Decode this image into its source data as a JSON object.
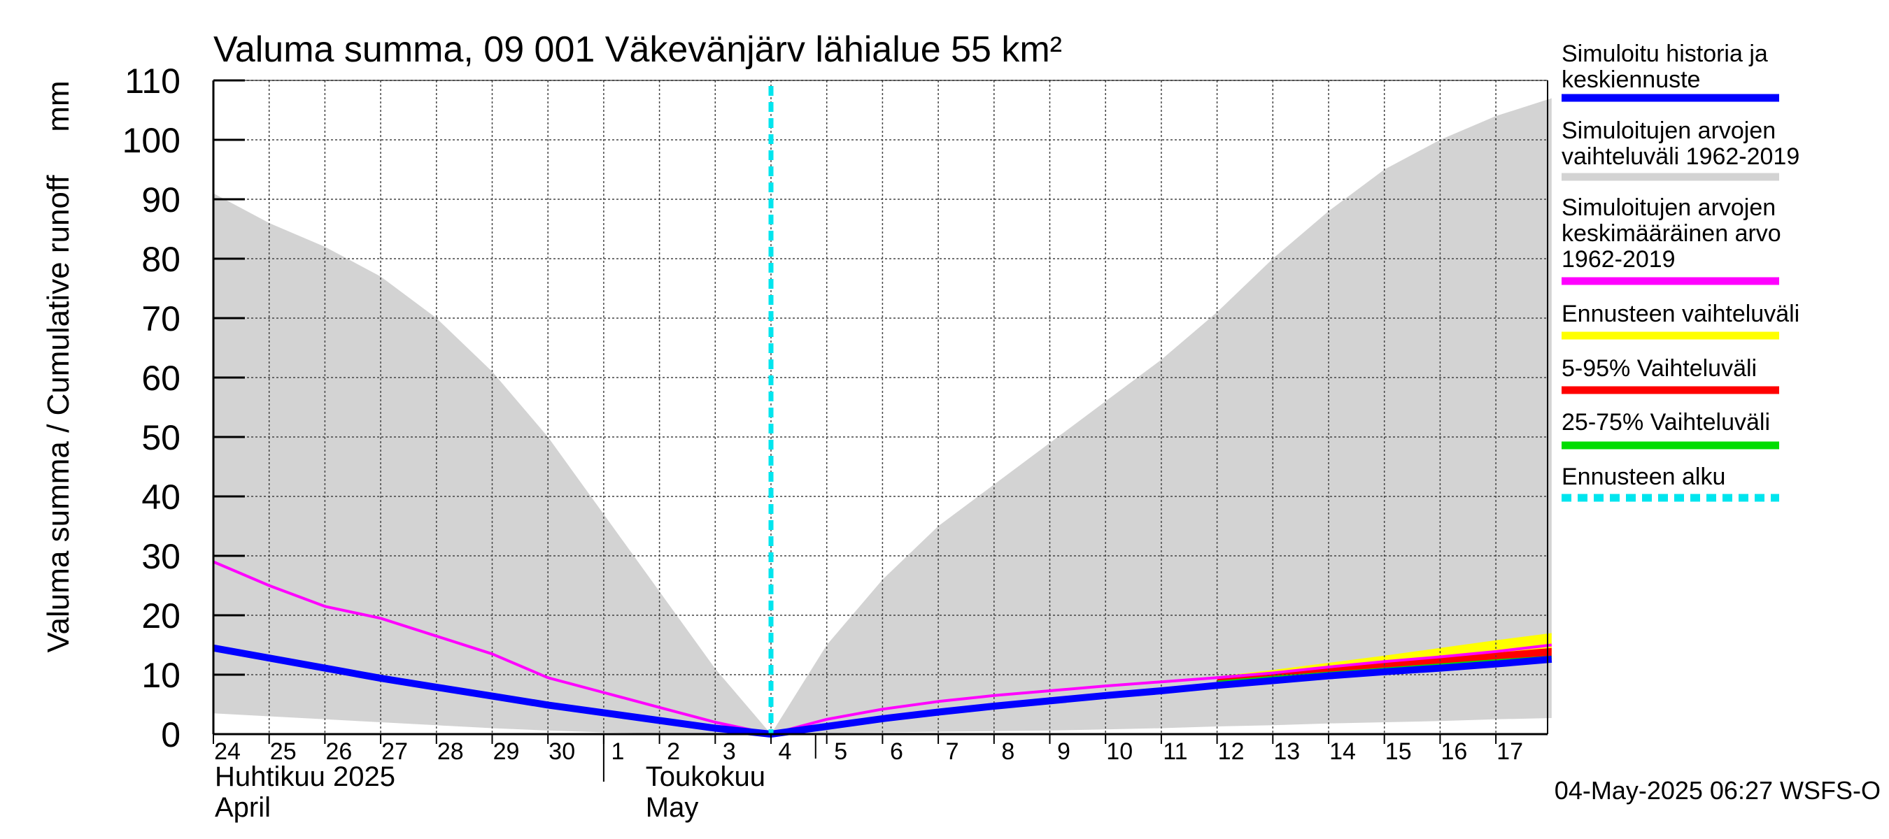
{
  "chart_data": {
    "type": "area",
    "title": "Valuma summa, 09 001 Väkevänjärv lähialue 55 km²",
    "ylabel": "Valuma summa / Cumulative runoff",
    "yunit": "mm",
    "ylim": [
      0,
      110
    ],
    "yticks": [
      0,
      10,
      20,
      30,
      40,
      50,
      60,
      70,
      80,
      90,
      100,
      110
    ],
    "x_day_labels": [
      "24",
      "25",
      "26",
      "27",
      "28",
      "29",
      "30",
      "1",
      "2",
      "3",
      "4",
      "5",
      "6",
      "7",
      "8",
      "9",
      "10",
      "11",
      "12",
      "13",
      "14",
      "15",
      "16",
      "17"
    ],
    "month_labels": [
      {
        "fi": "Huhtikuu  2025",
        "en": "April"
      },
      {
        "fi": "Toukokuu",
        "en": "May"
      }
    ],
    "grid": true,
    "forecast_start": "2025-05-04",
    "footer": "04-May-2025 06:27 WSFS-O",
    "series": [
      {
        "key": "range_hist",
        "name": "Simuloitujen arvojen vaihteluväli 1962-2019",
        "color": "#d3d3d3",
        "x": [
          "2025-04-24",
          "2025-04-25",
          "2025-04-26",
          "2025-04-27",
          "2025-04-28",
          "2025-04-29",
          "2025-04-30",
          "2025-05-01",
          "2025-05-02",
          "2025-05-03",
          "2025-05-04",
          "2025-05-05",
          "2025-05-06",
          "2025-05-07",
          "2025-05-08",
          "2025-05-09",
          "2025-05-10",
          "2025-05-11",
          "2025-05-12",
          "2025-05-13",
          "2025-05-14",
          "2025-05-15",
          "2025-05-16",
          "2025-05-17",
          "2025-05-18"
        ],
        "upper": [
          91,
          86,
          82,
          77,
          70,
          61,
          50,
          37,
          24,
          11,
          0,
          15,
          26,
          35,
          42,
          49,
          56,
          63,
          71,
          80,
          88,
          95,
          100,
          104,
          107
        ],
        "lower": [
          3.5,
          3,
          2.5,
          2,
          1.5,
          1,
          0.6,
          0.3,
          0.1,
          0,
          0,
          0.2,
          0.3,
          0.4,
          0.5,
          0.6,
          0.8,
          1.0,
          1.3,
          1.5,
          1.8,
          2.0,
          2.2,
          2.5,
          2.7
        ]
      },
      {
        "key": "forecast_range",
        "name": "Ennusteen vaihteluväli",
        "color": "#ffff00",
        "x": [
          "2025-05-12",
          "2025-05-13",
          "2025-05-14",
          "2025-05-15",
          "2025-05-16",
          "2025-05-17",
          "2025-05-18"
        ],
        "upper": [
          9.7,
          10.8,
          12,
          13.2,
          14.5,
          15.8,
          17
        ],
        "lower": [
          8.8,
          9.5,
          10.3,
          11,
          11.6,
          12.3,
          13
        ]
      },
      {
        "key": "p5_95",
        "name": "5-95% Vaihteluväli",
        "color": "#ff0000",
        "x": [
          "2025-05-12",
          "2025-05-13",
          "2025-05-14",
          "2025-05-15",
          "2025-05-16",
          "2025-05-17",
          "2025-05-18"
        ],
        "upper": [
          9.3,
          10.2,
          11.1,
          12,
          12.9,
          13.7,
          14.5
        ],
        "lower": [
          8.7,
          9.4,
          10.1,
          10.8,
          11.4,
          12.0,
          12.5
        ]
      },
      {
        "key": "p25_75",
        "name": "25-75% Vaihteluväli",
        "color": "#00dd00",
        "x": [
          "2025-05-12",
          "2025-05-13",
          "2025-05-14",
          "2025-05-15",
          "2025-05-16",
          "2025-05-17",
          "2025-05-18"
        ],
        "upper": [
          9.0,
          9.8,
          10.5,
          11.2,
          11.9,
          12.6,
          13.2
        ],
        "lower": [
          8.7,
          9.4,
          10.1,
          10.8,
          11.4,
          12.0,
          12.6
        ]
      },
      {
        "key": "mean_hist",
        "name": "Simuloitujen arvojen keskimääräinen arvo 1962-2019",
        "color": "#ff00ff",
        "x": [
          "2025-04-24",
          "2025-04-25",
          "2025-04-26",
          "2025-04-27",
          "2025-04-28",
          "2025-04-29",
          "2025-04-30",
          "2025-05-01",
          "2025-05-02",
          "2025-05-03",
          "2025-05-04",
          "2025-05-05",
          "2025-05-06",
          "2025-05-07",
          "2025-05-08",
          "2025-05-09",
          "2025-05-10",
          "2025-05-11",
          "2025-05-12",
          "2025-05-13",
          "2025-05-14",
          "2025-05-15",
          "2025-05-16",
          "2025-05-17",
          "2025-05-18"
        ],
        "values": [
          29,
          25,
          21.5,
          19.5,
          16.5,
          13.5,
          9.5,
          7,
          4.5,
          2,
          0,
          2.5,
          4.2,
          5.5,
          6.5,
          7.3,
          8.1,
          8.8,
          9.5,
          10.3,
          11.3,
          12.2,
          13,
          13.9,
          15
        ]
      },
      {
        "key": "history",
        "name": "Simuloitu historia ja keskiennuste",
        "color": "#0000ff",
        "x": [
          "2025-04-24",
          "2025-04-25",
          "2025-04-26",
          "2025-04-27",
          "2025-04-28",
          "2025-04-29",
          "2025-04-30",
          "2025-05-01",
          "2025-05-02",
          "2025-05-03",
          "2025-05-04",
          "2025-05-05",
          "2025-05-06",
          "2025-05-07",
          "2025-05-08",
          "2025-05-09",
          "2025-05-10",
          "2025-05-11",
          "2025-05-12",
          "2025-05-13",
          "2025-05-14",
          "2025-05-15",
          "2025-05-16",
          "2025-05-17",
          "2025-05-18"
        ],
        "values": [
          14.5,
          12.8,
          11.1,
          9.4,
          7.9,
          6.4,
          4.9,
          3.6,
          2.3,
          1.0,
          0,
          1.3,
          2.6,
          3.7,
          4.7,
          5.6,
          6.5,
          7.3,
          8.2,
          9.0,
          9.8,
          10.5,
          11.1,
          11.8,
          12.6
        ]
      }
    ]
  },
  "legend": {
    "items": [
      {
        "lines": [
          "Simuloitu historia ja",
          "keskiennuste"
        ],
        "color": "#0000ff",
        "style": "solid"
      },
      {
        "lines": [
          "Simuloitujen arvojen",
          "vaihteluväli 1962-2019"
        ],
        "color": "#d3d3d3",
        "style": "solid"
      },
      {
        "lines": [
          "Simuloitujen arvojen",
          "keskimääräinen arvo",
          "   1962-2019"
        ],
        "color": "#ff00ff",
        "style": "solid"
      },
      {
        "lines": [
          "Ennusteen vaihteluväli"
        ],
        "color": "#ffff00",
        "style": "solid"
      },
      {
        "lines": [
          "5-95% Vaihteluväli"
        ],
        "color": "#ff0000",
        "style": "solid"
      },
      {
        "lines": [
          "25-75% Vaihteluväli"
        ],
        "color": "#00dd00",
        "style": "solid"
      },
      {
        "lines": [
          "Ennusteen alku"
        ],
        "color": "#00e5ee",
        "style": "dashed"
      }
    ]
  }
}
